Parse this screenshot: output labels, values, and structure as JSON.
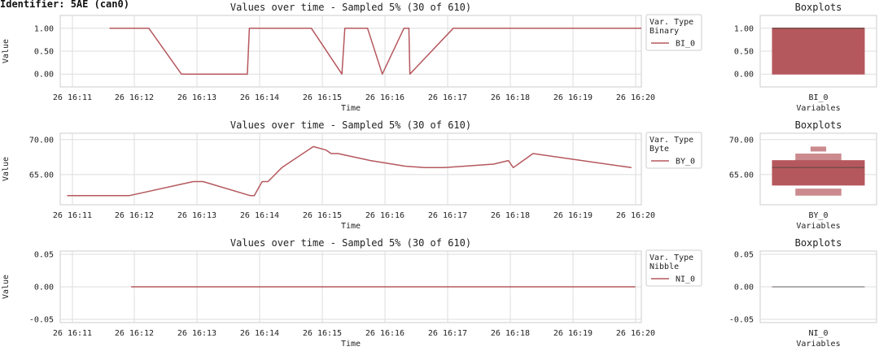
{
  "identifier": "Identifier: 5AE (can0)",
  "line_title": "Values over time - Sampled 5% (30 of 610)",
  "box_title": "Boxplots",
  "xlabel": "Time",
  "ylabel": "Value",
  "box_xlabel": "Variables",
  "legend_title": "Var. Type",
  "colors": {
    "line": "#b5585e",
    "box": "#b5585e",
    "median": "#7a4a4c",
    "grid": "#dddddd",
    "frame": "#cccccc"
  },
  "chart_data": [
    {
      "type": "line",
      "title": "Values over time - Sampled 5% (30 of 610)",
      "xlabel": "Time",
      "ylabel": "Value",
      "x_ticks": [
        "26 16:11",
        "26 16:12",
        "26 16:13",
        "26 16:14",
        "26 16:15",
        "26 16:16",
        "26 16:17",
        "26 16:18",
        "26 16:19",
        "26 16:20"
      ],
      "xlim": [
        "16:10:30",
        "16:20:20"
      ],
      "y_ticks": [
        "0.00",
        "0.50",
        "1.00"
      ],
      "ylim": [
        -0.28,
        1.28
      ],
      "legend_type": "Binary",
      "series": [
        {
          "name": "BI_0",
          "x": [
            "16:11:20",
            "16:12:00",
            "16:12:33",
            "16:13:40",
            "16:13:42",
            "16:14:45",
            "16:15:16",
            "16:15:19",
            "16:15:42",
            "16:15:57",
            "16:16:19",
            "16:16:24",
            "16:16:25",
            "16:17:09",
            "16:20:20"
          ],
          "y": [
            1,
            1,
            0,
            0,
            1,
            1,
            0,
            1,
            1,
            0,
            1,
            1,
            0,
            1,
            1
          ]
        }
      ],
      "box": {
        "variable": "BI_0",
        "q1": 0,
        "q3": 1,
        "median": 1,
        "ylim": [
          -0.28,
          1.28
        ],
        "y_ticks": [
          "0.00",
          "0.50",
          "1.00"
        ],
        "extra_boxes": []
      }
    },
    {
      "type": "line",
      "title": "Values over time - Sampled 5% (30 of 610)",
      "xlabel": "Time",
      "ylabel": "Value",
      "x_ticks": [
        "26 16:11",
        "26 16:12",
        "26 16:13",
        "26 16:14",
        "26 16:15",
        "26 16:16",
        "26 16:17",
        "26 16:18",
        "26 16:19",
        "26 16:20"
      ],
      "xlim": [
        "16:10:30",
        "16:20:20"
      ],
      "y_ticks": [
        "65.00",
        "70.00"
      ],
      "ylim": [
        60.7,
        70.9
      ],
      "legend_type": "Byte",
      "series": [
        {
          "name": "BY_0",
          "x": [
            "16:10:37",
            "16:11:40",
            "16:12:45",
            "16:12:55",
            "16:13:43",
            "16:13:47",
            "16:13:55",
            "16:14:01",
            "16:14:15",
            "16:14:47",
            "16:15:00",
            "16:15:05",
            "16:15:12",
            "16:15:45",
            "16:16:20",
            "16:16:40",
            "16:17:00",
            "16:17:50",
            "16:18:05",
            "16:18:10",
            "16:18:30",
            "16:20:10"
          ],
          "y": [
            62,
            62,
            64,
            64,
            62,
            62,
            64,
            64,
            66,
            69,
            68.5,
            68,
            68,
            67,
            66.2,
            66,
            66,
            66.5,
            67,
            66,
            68,
            66
          ]
        }
      ],
      "box": {
        "variable": "BY_0",
        "q1": 63.5,
        "q3": 67,
        "median": 66,
        "ylim": [
          60.7,
          70.9
        ],
        "y_ticks": [
          "65.00",
          "70.00"
        ],
        "extra_boxes": [
          {
            "lo": 67,
            "hi": 68,
            "half": 0.5
          },
          {
            "lo": 68.3,
            "hi": 69,
            "half": 0.17
          },
          {
            "lo": 62,
            "hi": 63,
            "half": 0.5
          }
        ]
      }
    },
    {
      "type": "line",
      "title": "Values over time - Sampled 5% (30 of 610)",
      "xlabel": "Time",
      "ylabel": "Value",
      "x_ticks": [
        "26 16:11",
        "26 16:12",
        "26 16:13",
        "26 16:14",
        "26 16:15",
        "26 16:16",
        "26 16:17",
        "26 16:18",
        "26 16:19",
        "26 16:20"
      ],
      "xlim": [
        "16:10:30",
        "16:20:20"
      ],
      "y_ticks": [
        "0.05",
        "0.00",
        "-0.05"
      ],
      "ylim": [
        -0.055,
        0.055
      ],
      "legend_type": "Nibble",
      "series": [
        {
          "name": "NI_0",
          "x": [
            "16:11:42",
            "16:20:14"
          ],
          "y": [
            0,
            0
          ]
        }
      ],
      "box": {
        "variable": "NI_0",
        "q1": 0,
        "q3": 0,
        "median": 0,
        "ylim": [
          -0.055,
          0.055
        ],
        "y_ticks": [
          "0.05",
          "0.00",
          "-0.05"
        ],
        "extra_boxes": []
      }
    }
  ]
}
